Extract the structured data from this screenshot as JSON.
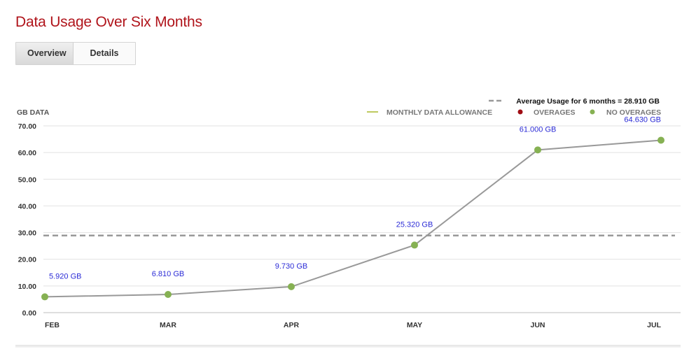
{
  "page": {
    "title": "Data Usage Over Six Months",
    "tabs": [
      {
        "label": "Overview",
        "active": true
      },
      {
        "label": "Details",
        "active": false
      }
    ]
  },
  "colors": {
    "title": "#b0141b",
    "line": "#999999",
    "point": "#86b153",
    "data_label": "#2b2bd6",
    "average_line": "#999999",
    "allowance": "#a8b82a",
    "overages": "#a00d14",
    "no_overages": "#86b153"
  },
  "chart_data": {
    "type": "line",
    "ylabel": "GB DATA",
    "categories": [
      "FEB",
      "MAR",
      "APR",
      "MAY",
      "JUN",
      "JUL"
    ],
    "values": [
      5.92,
      6.81,
      9.73,
      25.32,
      61.0,
      64.63
    ],
    "data_labels": [
      "5.920 GB",
      "6.810 GB",
      "9.730 GB",
      "25.320 GB",
      "61.000 GB",
      "64.630 GB"
    ],
    "ylim": [
      0,
      70
    ],
    "yticks": [
      "0.00",
      "10.00",
      "20.00",
      "30.00",
      "40.00",
      "50.00",
      "60.00",
      "70.00"
    ],
    "grid": true,
    "average": {
      "value": 28.91,
      "label": "Average Usage for 6 months = 28.910 GB"
    },
    "legend": {
      "placement": "top-right",
      "items": [
        {
          "key": "allowance",
          "label": "MONTHLY DATA ALLOWANCE",
          "marker": "line"
        },
        {
          "key": "overages",
          "label": "OVERAGES",
          "marker": "dot"
        },
        {
          "key": "no_overages",
          "label": "NO OVERAGES",
          "marker": "dot"
        }
      ]
    }
  }
}
